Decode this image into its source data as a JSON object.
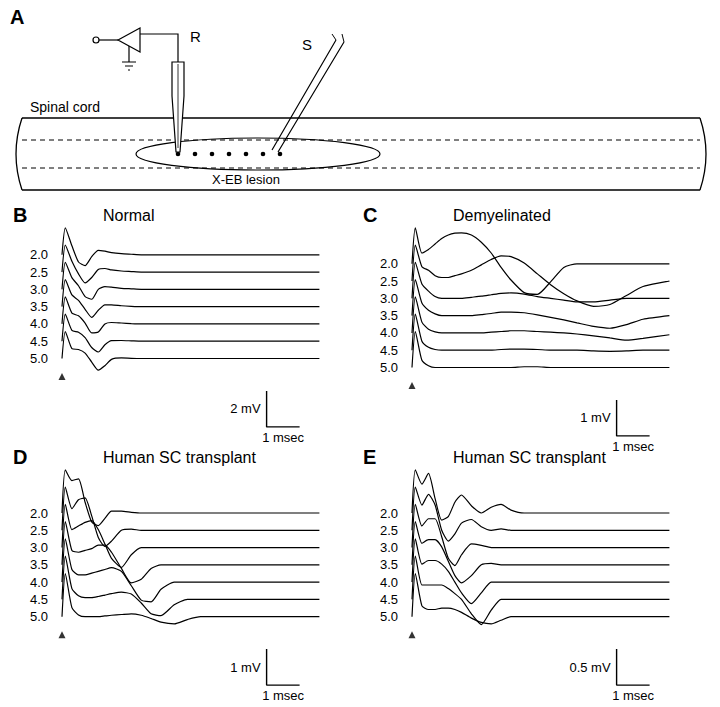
{
  "diagram": {
    "panel": "A",
    "recording_electrode": "R",
    "stimulating_electrode": "S",
    "cord": "Spinal cord",
    "lesion": "X-EB lesion"
  },
  "chart_data": [
    {
      "panel": "B",
      "type": "line",
      "title": "Normal",
      "color": "#000000",
      "tick_labels": false,
      "grid": false,
      "x": [
        0,
        0.1,
        0.3,
        0.5,
        0.7,
        0.9,
        1.1,
        1.3,
        1.5,
        1.8,
        2.1,
        2.4,
        2.7,
        3.0,
        3.4,
        3.8,
        4.2,
        4.6,
        5.0,
        5.5,
        6.0,
        6.5,
        7.0,
        7.8
      ],
      "series": [
        {
          "name": "2.0",
          "values": [
            0,
            1.5,
            0.5,
            -0.4,
            -0.6,
            -0.1,
            0.25,
            0.2,
            0.12,
            0.06,
            0.03,
            0,
            0,
            0,
            0,
            0,
            0,
            0,
            0,
            0,
            0,
            0,
            0,
            0
          ]
        },
        {
          "name": "2.5",
          "values": [
            0,
            1.5,
            0.6,
            -0.1,
            -0.6,
            -0.3,
            0.15,
            0.2,
            0.12,
            0.06,
            0.03,
            0,
            0,
            0,
            0,
            0,
            0,
            0,
            0,
            0,
            0,
            0,
            0,
            0
          ]
        },
        {
          "name": "3.0",
          "values": [
            0,
            1.5,
            0.65,
            0.2,
            -0.4,
            -0.55,
            0,
            0.15,
            0.12,
            0.06,
            0.03,
            0,
            0,
            0,
            0,
            0,
            0,
            0,
            0,
            0,
            0,
            0,
            0,
            0
          ]
        },
        {
          "name": "3.5",
          "values": [
            0,
            1.5,
            0.65,
            0.35,
            -0.15,
            -0.6,
            -0.2,
            0.1,
            0.1,
            0.05,
            0.02,
            0,
            0,
            0,
            0,
            0,
            0,
            0,
            0,
            0,
            0,
            0,
            0,
            0
          ]
        },
        {
          "name": "4.0",
          "values": [
            0,
            1.5,
            0.6,
            0.45,
            0.05,
            -0.5,
            -0.45,
            0,
            0.08,
            0.05,
            0.02,
            0,
            0,
            0,
            0,
            0,
            0,
            0,
            0,
            0,
            0,
            0,
            0,
            0
          ]
        },
        {
          "name": "4.5",
          "values": [
            0,
            1.5,
            0.6,
            0.5,
            0.2,
            -0.35,
            -0.6,
            -0.2,
            0.03,
            0.04,
            0.02,
            0,
            0,
            0,
            0,
            0,
            0,
            0,
            0,
            0,
            0,
            0,
            0,
            0
          ]
        },
        {
          "name": "5.0",
          "values": [
            0,
            1.5,
            0.55,
            0.5,
            0.3,
            -0.2,
            -0.65,
            -0.4,
            -0.05,
            0.03,
            0.01,
            0,
            0,
            0,
            0,
            0,
            0,
            0,
            0,
            0,
            0,
            0,
            0,
            0
          ]
        }
      ],
      "scale_bar": {
        "y": 2,
        "y_label": "2 mV",
        "x": 1,
        "x_label": "1 msec"
      }
    },
    {
      "panel": "C",
      "type": "line",
      "title": "Demyelinated",
      "color": "#000000",
      "tick_labels": false,
      "grid": false,
      "x": [
        0,
        0.1,
        0.3,
        0.5,
        0.7,
        0.9,
        1.1,
        1.3,
        1.5,
        1.8,
        2.1,
        2.4,
        2.7,
        3.0,
        3.4,
        3.8,
        4.2,
        4.6,
        5.0,
        5.5,
        6.0,
        6.5,
        7.0,
        7.8
      ],
      "series": [
        {
          "name": "2.0",
          "values": [
            0,
            1.0,
            0.3,
            0.4,
            0.55,
            0.7,
            0.8,
            0.85,
            0.86,
            0.8,
            0.6,
            0.3,
            -0.1,
            -0.45,
            -0.8,
            -0.85,
            -0.5,
            -0.1,
            0,
            0,
            0,
            0,
            0,
            0
          ]
        },
        {
          "name": "2.5",
          "values": [
            0,
            1.0,
            0.4,
            0.3,
            0.15,
            0.1,
            0.1,
            0.15,
            0.2,
            0.3,
            0.45,
            0.6,
            0.7,
            0.68,
            0.5,
            0.2,
            -0.1,
            -0.35,
            -0.55,
            -0.7,
            -0.65,
            -0.4,
            -0.15,
            0
          ]
        },
        {
          "name": "3.0",
          "values": [
            0,
            1.0,
            0.4,
            0.2,
            0.05,
            0,
            0,
            0,
            0,
            0.03,
            0.06,
            0.1,
            0.14,
            0.15,
            0.12,
            0.05,
            0,
            -0.05,
            -0.1,
            -0.1,
            -0.05,
            0,
            0,
            0
          ]
        },
        {
          "name": "3.5",
          "values": [
            0,
            1.0,
            0.35,
            0.15,
            0.05,
            0,
            0,
            0,
            0,
            0,
            0.03,
            0.06,
            0.1,
            0.1,
            0.08,
            0.02,
            -0.05,
            -0.12,
            -0.2,
            -0.3,
            -0.35,
            -0.25,
            -0.1,
            0
          ]
        },
        {
          "name": "4.0",
          "values": [
            0,
            1.0,
            0.3,
            0.1,
            0.03,
            0,
            0,
            0,
            0,
            0,
            0,
            0.02,
            0.04,
            0.06,
            0.06,
            0.04,
            0.02,
            0,
            -0.03,
            -0.08,
            -0.14,
            -0.2,
            -0.15,
            -0.05
          ]
        },
        {
          "name": "4.5",
          "values": [
            0,
            1.0,
            0.25,
            0.08,
            0.02,
            0,
            0,
            0,
            0,
            0,
            0,
            0,
            0.02,
            0.03,
            0.03,
            0.02,
            0,
            0,
            0,
            -0.02,
            -0.03,
            -0.02,
            0,
            0
          ]
        },
        {
          "name": "5.0",
          "values": [
            0,
            1.0,
            0.2,
            0.05,
            0,
            0,
            0,
            0,
            0,
            0,
            0,
            0,
            0,
            0,
            0.02,
            0.02,
            0,
            0,
            0,
            0,
            0,
            0,
            0,
            0
          ]
        }
      ],
      "scale_bar": {
        "y": 1,
        "y_label": "1 mV",
        "x": 1,
        "x_label": "1 msec"
      }
    },
    {
      "panel": "D",
      "type": "line",
      "title": "Human SC transplant",
      "color": "#000000",
      "tick_labels": false,
      "grid": false,
      "x": [
        0,
        0.1,
        0.3,
        0.5,
        0.7,
        0.9,
        1.1,
        1.3,
        1.5,
        1.8,
        2.1,
        2.4,
        2.7,
        3.0,
        3.4,
        3.8,
        4.2,
        4.6,
        5.0,
        5.5,
        6.0,
        6.5,
        7.0,
        7.8
      ],
      "series": [
        {
          "name": "2.0",
          "values": [
            0,
            1.2,
            0.9,
            0.95,
            0.3,
            -0.25,
            -0.35,
            -0.15,
            0.05,
            0.05,
            0.02,
            0,
            0,
            0,
            0,
            0,
            0,
            0,
            0,
            0,
            0,
            0,
            0,
            0
          ]
        },
        {
          "name": "2.5",
          "values": [
            0,
            1.2,
            0.6,
            0.85,
            0.9,
            0.4,
            -0.2,
            -0.45,
            -0.3,
            0,
            0.03,
            0,
            0,
            0,
            0,
            0,
            0,
            0,
            0,
            0,
            0,
            0,
            0,
            0
          ]
        },
        {
          "name": "3.0",
          "values": [
            0,
            1.2,
            0.5,
            0.6,
            0.7,
            0.75,
            0.5,
            0.1,
            -0.3,
            -0.55,
            -0.2,
            0,
            0,
            0,
            0,
            0,
            0,
            0,
            0,
            0,
            0,
            0,
            0,
            0
          ]
        },
        {
          "name": "3.5",
          "values": [
            0,
            1.2,
            0.4,
            0.35,
            0.4,
            0.45,
            0.55,
            0.55,
            0.35,
            -0.1,
            -0.5,
            -0.4,
            -0.1,
            0,
            0,
            0,
            0,
            0,
            0,
            0,
            0,
            0,
            0,
            0
          ]
        },
        {
          "name": "4.0",
          "values": [
            0,
            1.2,
            0.35,
            0.2,
            0.2,
            0.25,
            0.3,
            0.35,
            0.4,
            0.3,
            -0.1,
            -0.5,
            -0.55,
            -0.2,
            0,
            0,
            0,
            0,
            0,
            0,
            0,
            0,
            0,
            0
          ]
        },
        {
          "name": "4.5",
          "values": [
            0,
            1.2,
            0.3,
            0.1,
            0.05,
            0.05,
            0.08,
            0.12,
            0.16,
            0.2,
            0.15,
            -0.1,
            -0.4,
            -0.45,
            -0.15,
            0,
            0,
            0,
            0,
            0,
            0,
            0,
            0,
            0
          ]
        },
        {
          "name": "5.0",
          "values": [
            0,
            1.2,
            0.25,
            0.05,
            0,
            0,
            0,
            0.02,
            0.04,
            0.06,
            0.08,
            0.04,
            -0.05,
            -0.15,
            -0.2,
            -0.08,
            0,
            0,
            0,
            0,
            0,
            0,
            0,
            0
          ]
        }
      ],
      "scale_bar": {
        "y": 1,
        "y_label": "1 mV",
        "x": 1,
        "x_label": "1 msec"
      }
    },
    {
      "panel": "E",
      "type": "line",
      "title": "Human SC transplant",
      "color": "#000000",
      "tick_labels": false,
      "grid": false,
      "x": [
        0,
        0.1,
        0.3,
        0.5,
        0.7,
        0.9,
        1.1,
        1.3,
        1.5,
        1.8,
        2.1,
        2.4,
        2.7,
        3.0,
        3.4,
        3.8,
        4.2,
        4.6,
        5.0,
        5.5,
        6.0,
        6.5,
        7.0,
        7.8
      ],
      "series": [
        {
          "name": "2.0",
          "values": [
            0,
            0.6,
            0.4,
            0.55,
            0.2,
            -0.1,
            -0.05,
            0.15,
            0.25,
            0.1,
            0,
            0.08,
            0.12,
            0.04,
            0,
            0,
            0,
            0,
            0,
            0,
            0,
            0,
            0,
            0
          ]
        },
        {
          "name": "2.5",
          "values": [
            0,
            0.6,
            0.35,
            0.5,
            0.35,
            0,
            -0.15,
            -0.05,
            0.1,
            0.15,
            0.05,
            0,
            0.02,
            0,
            0,
            0,
            0,
            0,
            0,
            0,
            0,
            0,
            0,
            0
          ]
        },
        {
          "name": "3.0",
          "values": [
            0,
            0.6,
            0.3,
            0.4,
            0.4,
            0.15,
            -0.15,
            -0.25,
            -0.1,
            0.05,
            0.03,
            0,
            0,
            0,
            0,
            0,
            0,
            0,
            0,
            0,
            0,
            0,
            0,
            0
          ]
        },
        {
          "name": "3.5",
          "values": [
            0,
            0.6,
            0.3,
            0.35,
            0.35,
            0.25,
            0.05,
            -0.15,
            -0.25,
            -0.15,
            0,
            0.02,
            0,
            0,
            0,
            0,
            0,
            0,
            0,
            0,
            0,
            0,
            0,
            0
          ]
        },
        {
          "name": "4.0",
          "values": [
            0,
            0.6,
            0.25,
            0.3,
            0.3,
            0.25,
            0.15,
            0,
            -0.15,
            -0.3,
            -0.15,
            0,
            0,
            0,
            0,
            0,
            0,
            0,
            0,
            0,
            0,
            0,
            0,
            0
          ]
        },
        {
          "name": "4.5",
          "values": [
            0,
            0.6,
            0.2,
            0.2,
            0.2,
            0.2,
            0.15,
            0.08,
            0,
            -0.2,
            -0.35,
            -0.15,
            0,
            0,
            0,
            0,
            0,
            0,
            0,
            0,
            0,
            0,
            0,
            0
          ]
        },
        {
          "name": "5.0",
          "values": [
            0,
            0.6,
            0.15,
            0.1,
            0.1,
            0.12,
            0.12,
            0.1,
            0.06,
            -0.02,
            -0.08,
            -0.1,
            -0.05,
            0,
            0,
            0,
            0,
            0,
            0,
            0,
            0,
            0,
            0,
            0
          ]
        }
      ],
      "scale_bar": {
        "y": 0.5,
        "y_label": "0.5 mV",
        "x": 1,
        "x_label": "1 msec"
      }
    }
  ]
}
